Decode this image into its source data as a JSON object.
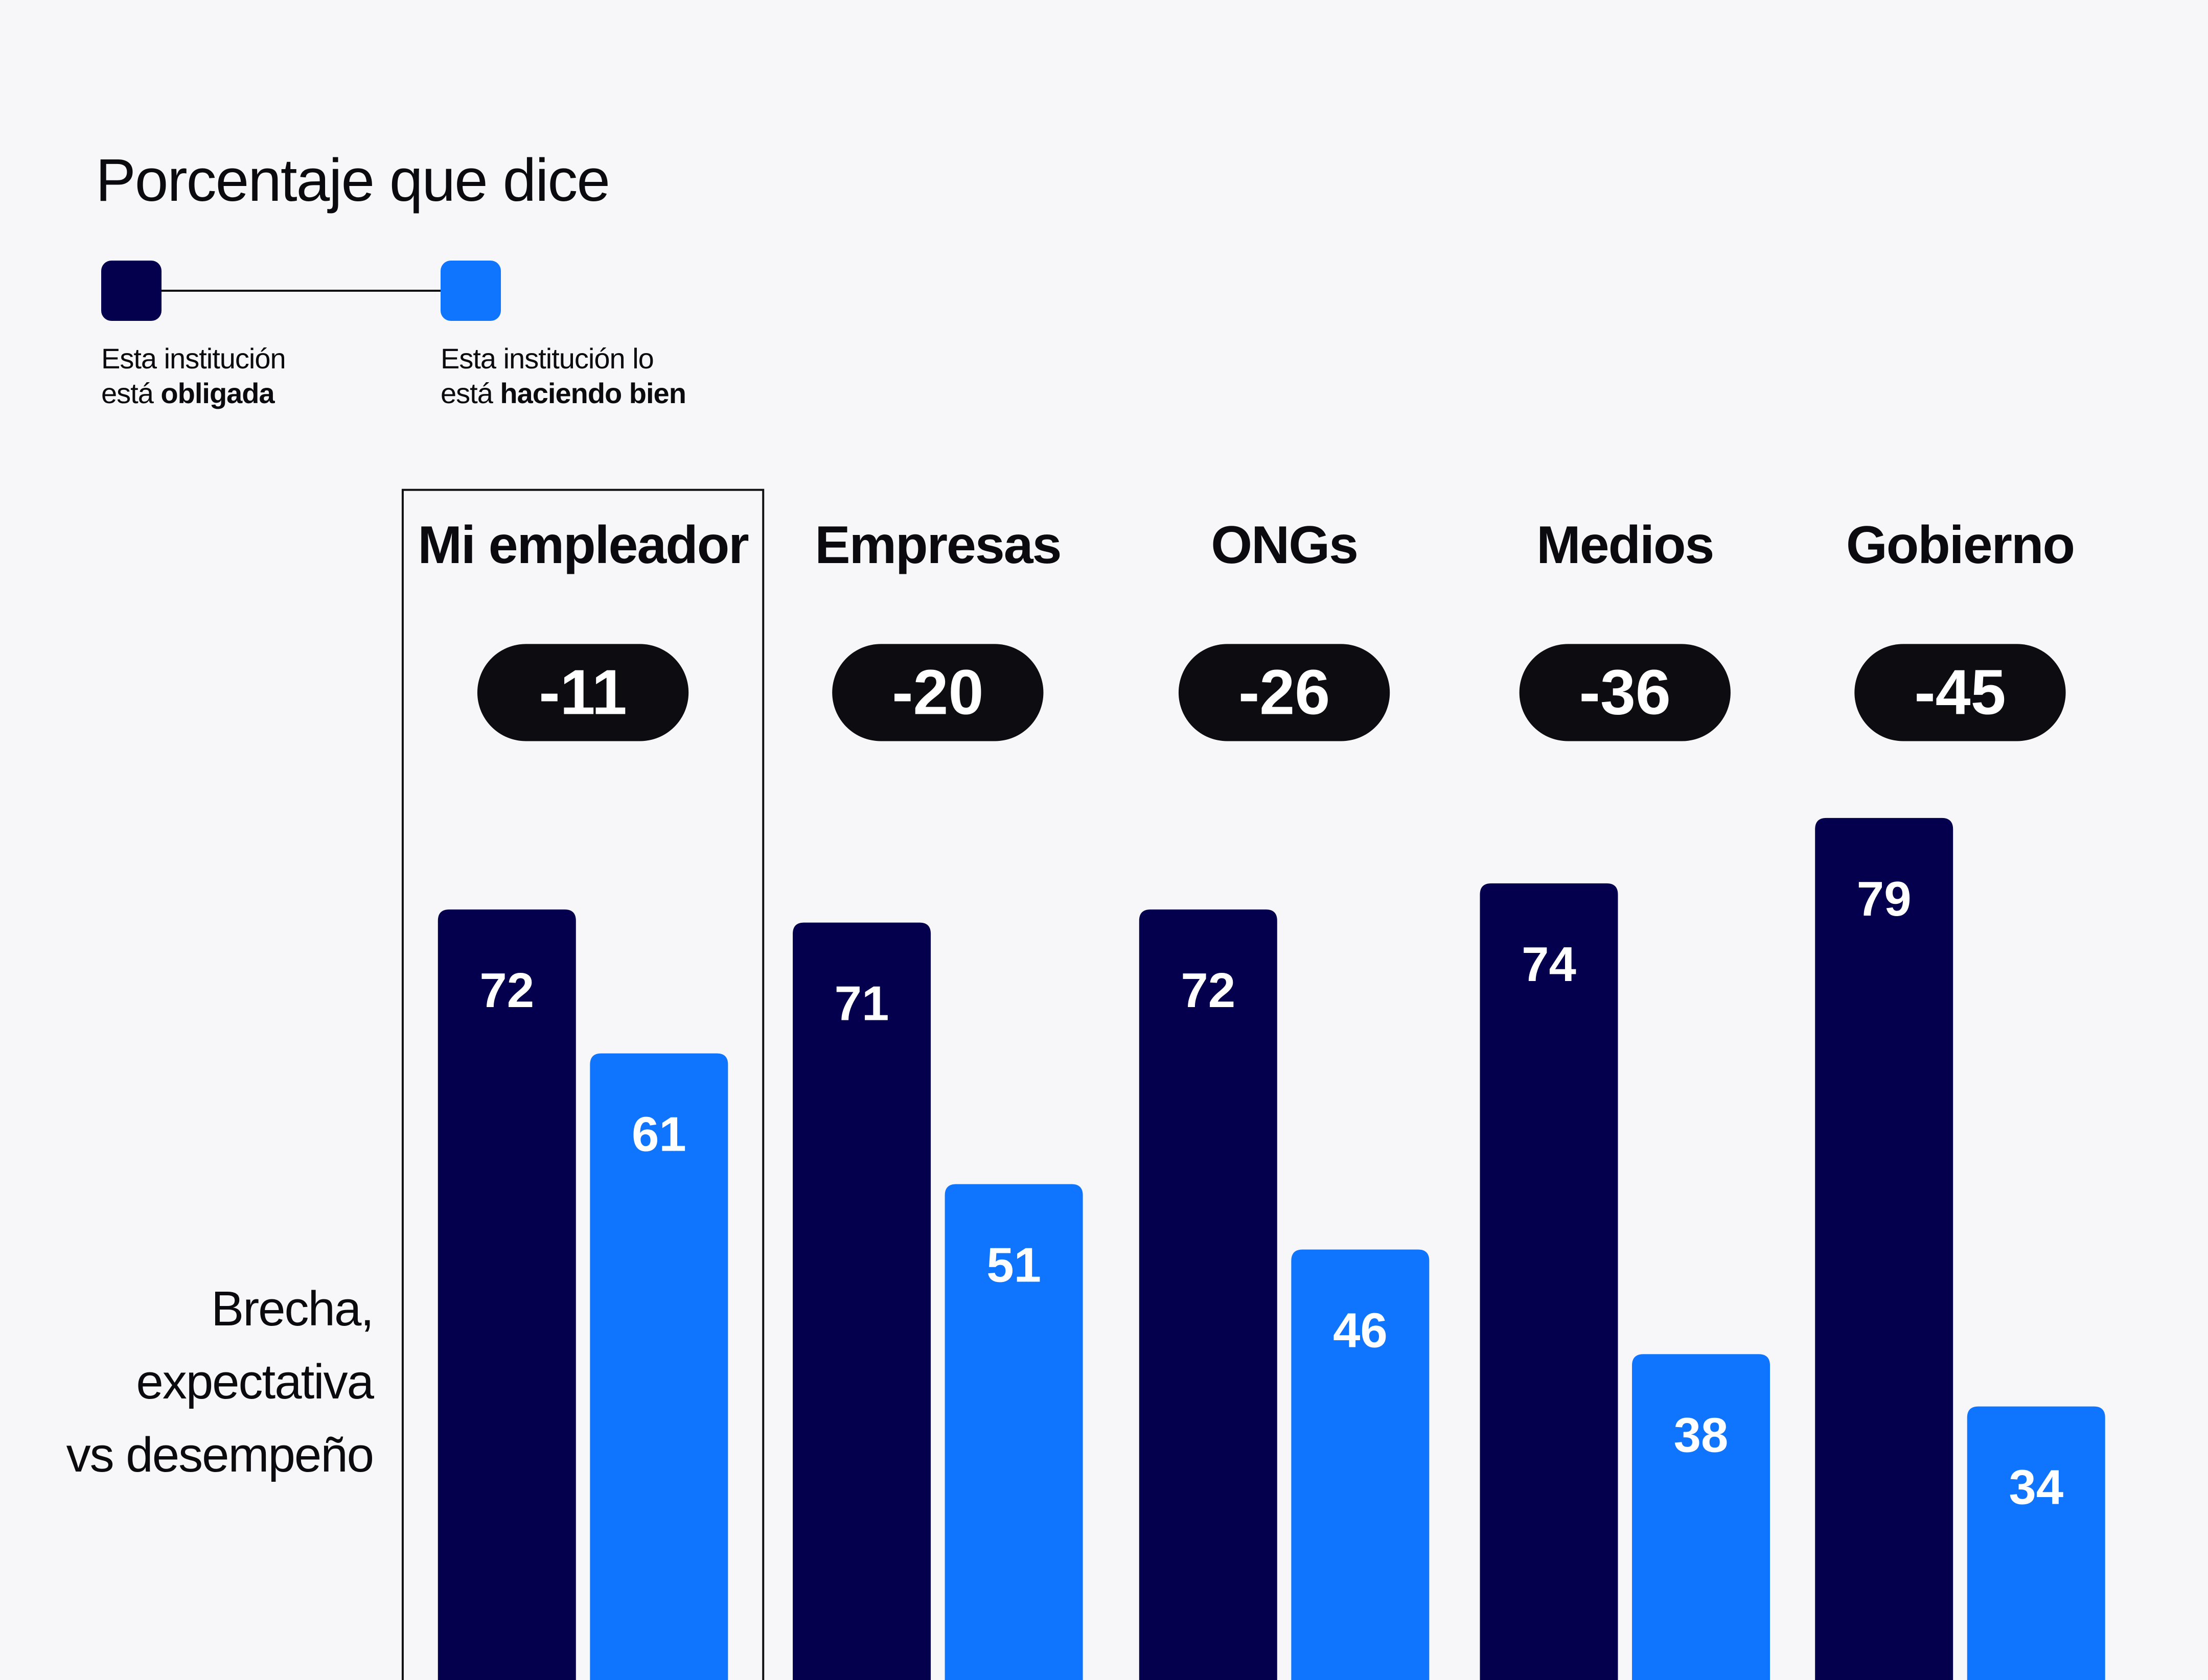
{
  "title": "Porcentaje que dice",
  "legend": [
    {
      "line1": "Esta institución",
      "line2_prefix": "está ",
      "line2_bold": "obligada",
      "color": "#05004e"
    },
    {
      "line1": "Esta institución lo",
      "line2_prefix": "está ",
      "line2_bold": "haciendo bien",
      "color": "#1075fe"
    }
  ],
  "side_label": [
    "Brecha,",
    "expectativa",
    "vs desempeño"
  ],
  "highlighted_category": "Mi empleador",
  "colors": {
    "obligada": "#05004e",
    "haciendo_bien": "#1075fe",
    "gap_pill": "#0d0c10",
    "background": "#f7f6f9"
  },
  "chart_data": {
    "type": "bar",
    "title": "Porcentaje que dice",
    "xlabel": "",
    "ylabel": "",
    "categories": [
      "Mi empleador",
      "Empresas",
      "ONGs",
      "Medios",
      "Gobierno"
    ],
    "series": [
      {
        "name": "Esta institución está obligada",
        "values": [
          72,
          71,
          72,
          74,
          79
        ]
      },
      {
        "name": "Esta institución lo está haciendo bien",
        "values": [
          61,
          51,
          46,
          38,
          34
        ]
      }
    ],
    "gaps": [
      -11,
      -20,
      -26,
      -36,
      -45
    ],
    "gap_label": "Brecha, expectativa vs desempeño",
    "legend_position": "top-left",
    "grid": false,
    "ylim": [
      0,
      100
    ]
  }
}
